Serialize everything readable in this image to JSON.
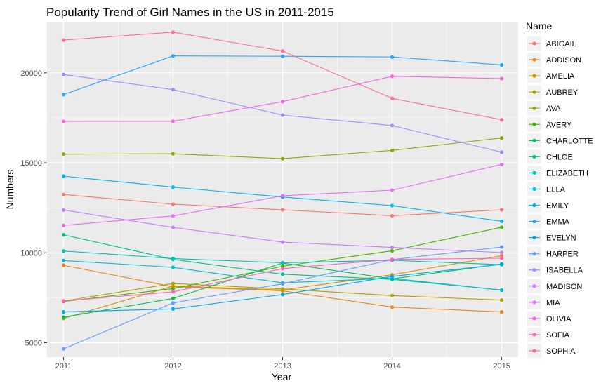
{
  "chart_data": {
    "type": "line",
    "title": "Popularity Trend of Girl Names in the US in 2011-2015",
    "xlabel": "Year",
    "ylabel": "Numbers",
    "x": [
      2011,
      2012,
      2013,
      2014,
      2015
    ],
    "x_tick_labels": [
      "2011",
      "2012",
      "2013",
      "2014",
      "2015"
    ],
    "y_ticks": [
      5000,
      10000,
      15000,
      20000
    ],
    "y_tick_labels": [
      "5000",
      "10000",
      "15000",
      "20000"
    ],
    "xlim": [
      2010.85,
      2015.15
    ],
    "ylim": [
      4200,
      22800
    ],
    "grid": true,
    "legend_title": "Name",
    "legend_position": "right",
    "series": [
      {
        "name": "ABIGAIL",
        "color": "#F8766D",
        "values": [
          13240,
          12700,
          12390,
          12060,
          12390
        ]
      },
      {
        "name": "ADDISON",
        "color": "#E7851E",
        "values": [
          9310,
          8110,
          7890,
          6980,
          6710
        ]
      },
      {
        "name": "AMELIA",
        "color": "#D09400",
        "values": [
          6350,
          8150,
          7930,
          8780,
          9840
        ]
      },
      {
        "name": "AUBREY",
        "color": "#B2A100",
        "values": [
          7320,
          8290,
          7990,
          7620,
          7370
        ]
      },
      {
        "name": "AVA",
        "color": "#89AC00",
        "values": [
          15480,
          15500,
          15230,
          15690,
          16380
        ]
      },
      {
        "name": "AVERY",
        "color": "#45B500",
        "values": [
          7290,
          8010,
          9250,
          10110,
          11420
        ]
      },
      {
        "name": "CHARLOTTE",
        "color": "#00BC51",
        "values": [
          6420,
          7460,
          9430,
          8550,
          9380
        ]
      },
      {
        "name": "CHLOE",
        "color": "#00C087",
        "values": [
          11000,
          9630,
          8810,
          8520,
          7930
        ]
      },
      {
        "name": "ELIZABETH",
        "color": "#00C0B2",
        "values": [
          10100,
          9680,
          9450,
          9580,
          9340
        ]
      },
      {
        "name": "ELLA",
        "color": "#00BCD6",
        "values": [
          9570,
          9190,
          8330,
          8580,
          7920
        ]
      },
      {
        "name": "EMILY",
        "color": "#00B3F2",
        "values": [
          14260,
          13650,
          13100,
          12620,
          11750
        ]
      },
      {
        "name": "EMMA",
        "color": "#29A3FF",
        "values": [
          18790,
          20940,
          20920,
          20880,
          20440
        ]
      },
      {
        "name": "EVELYN",
        "color": "#00A8E8",
        "values": [
          6710,
          6880,
          7680,
          8690,
          9360
        ]
      },
      {
        "name": "HARPER",
        "color": "#619CFF",
        "values": [
          4660,
          7210,
          8280,
          9620,
          10320
        ]
      },
      {
        "name": "ISABELLA",
        "color": "#9C8DFF",
        "values": [
          19910,
          19070,
          17650,
          17070,
          15590
        ]
      },
      {
        "name": "MADISON",
        "color": "#C77CFF",
        "values": [
          12380,
          11410,
          10590,
          10300,
          10010
        ]
      },
      {
        "name": "MIA",
        "color": "#E46CF6",
        "values": [
          11520,
          12050,
          13170,
          13480,
          14910
        ]
      },
      {
        "name": "OLIVIA",
        "color": "#F564E3",
        "values": [
          17300,
          17310,
          18400,
          19810,
          19680
        ]
      },
      {
        "name": "SOFIA",
        "color": "#FF61C3",
        "values": [
          7320,
          7830,
          9120,
          9630,
          9700
        ]
      },
      {
        "name": "SOPHIA",
        "color": "#FF6C91",
        "values": [
          21820,
          22260,
          21210,
          18580,
          17390
        ]
      }
    ]
  }
}
